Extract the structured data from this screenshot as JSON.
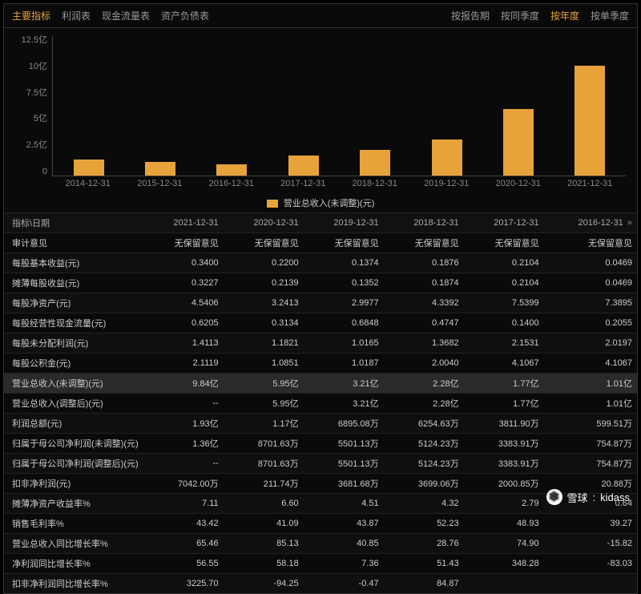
{
  "tabs_left": [
    "主要指标",
    "利润表",
    "现金流量表",
    "资产负债表"
  ],
  "tabs_right": [
    "按报告期",
    "按同季度",
    "按年度",
    "按单季度"
  ],
  "tabs_left_active": 0,
  "tabs_right_active": 2,
  "chart": {
    "type": "bar",
    "categories": [
      "2014-12-31",
      "2015-12-31",
      "2016-12-31",
      "2017-12-31",
      "2018-12-31",
      "2019-12-31",
      "2020-12-31",
      "2021-12-31"
    ],
    "values": [
      1.45,
      1.2,
      1.01,
      1.77,
      2.28,
      3.21,
      5.95,
      9.84
    ],
    "bar_color": "#e7a33a",
    "background_color": "#0a0a0a",
    "grid_color": "#444444",
    "text_color": "#888888",
    "ymax": 12.5,
    "ylabels": [
      "12.5亿",
      "10亿",
      "7.5亿",
      "5亿",
      "2.5亿",
      "0"
    ],
    "legend_label": "营业总收入(未调整)(元)"
  },
  "table": {
    "header_label": "指标\\日期",
    "columns": [
      "2021-12-31",
      "2020-12-31",
      "2019-12-31",
      "2018-12-31",
      "2017-12-31",
      "2016-12-31"
    ],
    "scroll_indicator": "»",
    "highlight_row_index": 7,
    "rows": [
      {
        "label": "审计意见",
        "cells": [
          "无保留意见",
          "无保留意见",
          "无保留意见",
          "无保留意见",
          "无保留意见",
          "无保留意见"
        ]
      },
      {
        "label": "每股基本收益(元)",
        "cells": [
          "0.3400",
          "0.2200",
          "0.1374",
          "0.1876",
          "0.2104",
          "0.0469"
        ]
      },
      {
        "label": "摊薄每股收益(元)",
        "cells": [
          "0.3227",
          "0.2139",
          "0.1352",
          "0.1874",
          "0.2104",
          "0.0469"
        ]
      },
      {
        "label": "每股净资产(元)",
        "cells": [
          "4.5406",
          "3.2413",
          "2.9977",
          "4.3392",
          "7.5399",
          "7.3895"
        ]
      },
      {
        "label": "每股经营性现金流量(元)",
        "cells": [
          "0.6205",
          "0.3134",
          "0.6848",
          "0.4747",
          "0.1400",
          "0.2055"
        ]
      },
      {
        "label": "每股未分配利润(元)",
        "cells": [
          "1.4113",
          "1.1821",
          "1.0165",
          "1.3682",
          "2.1531",
          "2.0197"
        ]
      },
      {
        "label": "每股公积金(元)",
        "cells": [
          "2.1119",
          "1.0851",
          "1.0187",
          "2.0040",
          "4.1067",
          "4.1067"
        ]
      },
      {
        "label": "营业总收入(未调整)(元)",
        "cells": [
          "9.84亿",
          "5.95亿",
          "3.21亿",
          "2.28亿",
          "1.77亿",
          "1.01亿"
        ]
      },
      {
        "label": "营业总收入(调整后)(元)",
        "cells": [
          "--",
          "5.95亿",
          "3.21亿",
          "2.28亿",
          "1.77亿",
          "1.01亿"
        ]
      },
      {
        "label": "利润总额(元)",
        "cells": [
          "1.93亿",
          "1.17亿",
          "6895.08万",
          "6254.63万",
          "3811.90万",
          "599.51万"
        ]
      },
      {
        "label": "归属于母公司净利润(未调整)(元)",
        "cells": [
          "1.36亿",
          "8701.63万",
          "5501.13万",
          "5124.23万",
          "3383.91万",
          "754.87万"
        ]
      },
      {
        "label": "归属于母公司净利润(调整后)(元)",
        "cells": [
          "--",
          "8701.63万",
          "5501.13万",
          "5124.23万",
          "3383.91万",
          "754.87万"
        ]
      },
      {
        "label": "扣非净利润(元)",
        "cells": [
          "7042.00万",
          "211.74万",
          "3681.68万",
          "3699.06万",
          "2000.85万",
          "20.88万"
        ]
      },
      {
        "label": "摊薄净资产收益率%",
        "cells": [
          "7.11",
          "6.60",
          "4.51",
          "4.32",
          "2.79",
          "0.64"
        ]
      },
      {
        "label": "销售毛利率%",
        "cells": [
          "43.42",
          "41.09",
          "43.87",
          "52.23",
          "48.93",
          "39.27"
        ]
      },
      {
        "label": "营业总收入同比增长率%",
        "cells": [
          "65.46",
          "85.13",
          "40.85",
          "28.76",
          "74.90",
          "-15.82"
        ]
      },
      {
        "label": "净利润同比增长率%",
        "cells": [
          "56.55",
          "58.18",
          "7.36",
          "51.43",
          "348.28",
          "-83.03"
        ]
      },
      {
        "label": "扣非净利润同比增长率%",
        "cells": [
          "3225.70",
          "-94.25",
          "-0.47",
          "84.87",
          "",
          ""
        ]
      }
    ]
  },
  "watermark": {
    "brand": "雪球",
    "user": "kidass"
  }
}
